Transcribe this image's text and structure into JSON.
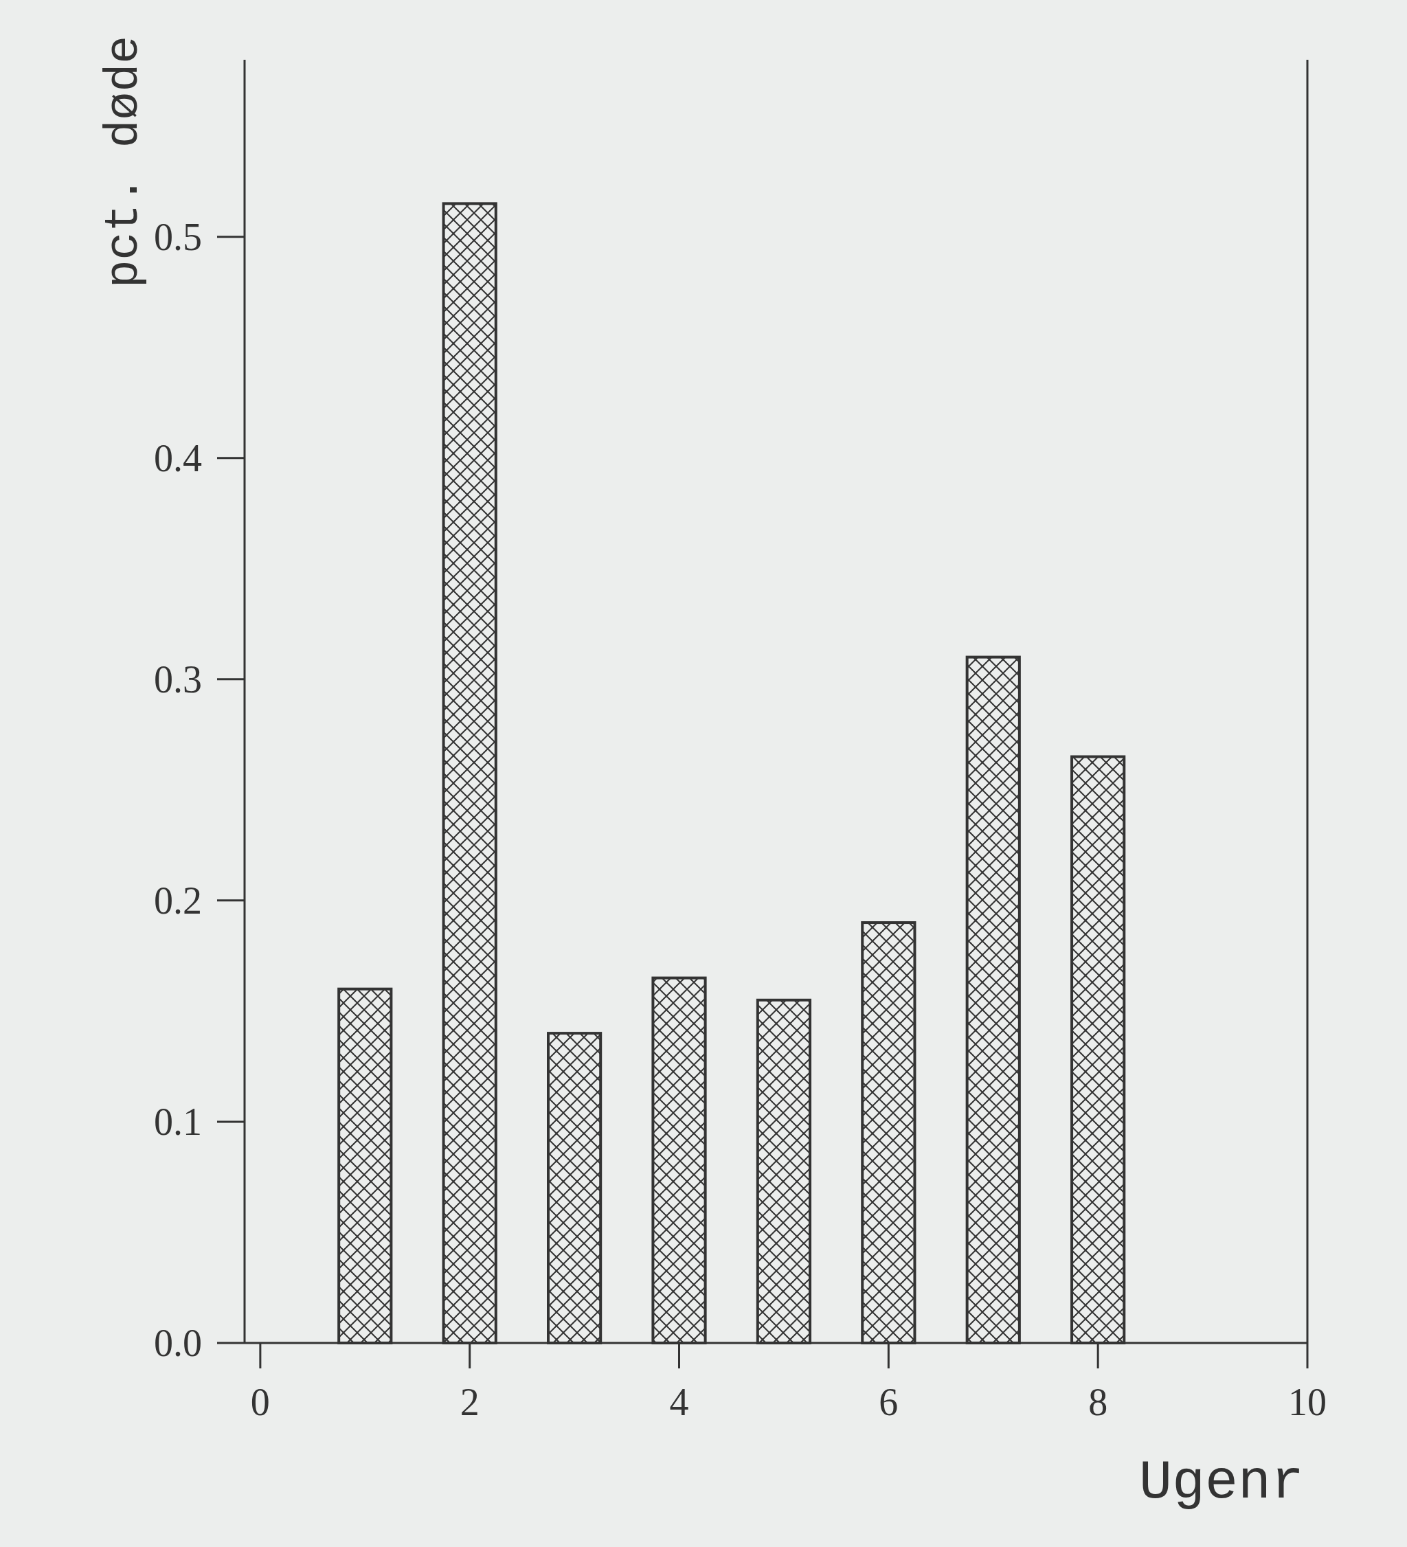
{
  "chart_data": {
    "type": "bar",
    "xlabel": "Ugenr",
    "ylabel": "pct. døde",
    "x": [
      1,
      2,
      3,
      4,
      5,
      6,
      7,
      8
    ],
    "values": [
      0.16,
      0.515,
      0.14,
      0.165,
      0.155,
      0.19,
      0.31,
      0.265
    ],
    "color": "#333333",
    "xlim": [
      -0.15,
      10
    ],
    "xticks": [
      0,
      2,
      4,
      6,
      8,
      10
    ],
    "ylim": [
      0,
      0.58
    ],
    "yticks": [
      {
        "value": 0,
        "label": "0.0"
      },
      0.1,
      0.2,
      0.3,
      0.4,
      0.5
    ]
  }
}
